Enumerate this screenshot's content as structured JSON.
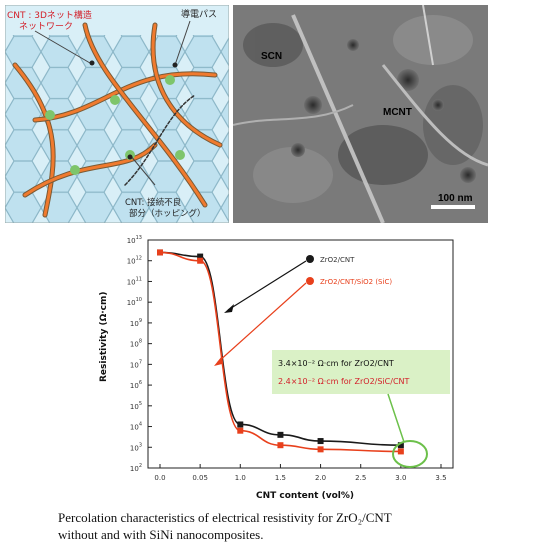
{
  "schematic": {
    "label_top_left": "CNT : 3Dネット構造",
    "label_top_left_2": "ネットワーク",
    "label_top_right": "導電パス",
    "label_bottom_1": "CNT: 接続不良",
    "label_bottom_2": "部分（ホッピング）"
  },
  "sem": {
    "label_1": "SCN",
    "label_2": "MCNT",
    "scale_bar": "100 nm"
  },
  "chart_data": {
    "type": "line",
    "xlabel": "CNT content (vol%)",
    "ylabel": "Resistivity (Ω·cm)",
    "x_tick_labels": [
      "0.0",
      "0.05",
      "1.0",
      "1.5",
      "2.0",
      "2.5",
      "3.0",
      "3.5"
    ],
    "y_tick_exponents": [
      2,
      3,
      4,
      5,
      6,
      7,
      8,
      9,
      10,
      11,
      12,
      13
    ],
    "y_tick_base": "10",
    "ylim_log10": [
      2,
      13
    ],
    "series": [
      {
        "name": "ZrO2/CNT",
        "color": "#1a1a1a",
        "x": [
          0.0,
          0.05,
          1.0,
          1.5,
          2.0,
          3.0
        ],
        "y_log10": [
          12.4,
          12.2,
          4.1,
          3.6,
          3.3,
          3.1
        ]
      },
      {
        "name": "ZrO2/CNT/SiO2 (SiC)",
        "color": "#e8401c",
        "x": [
          0.0,
          0.05,
          1.0,
          1.5,
          2.0,
          3.0
        ],
        "y_log10": [
          12.4,
          12.0,
          3.8,
          3.1,
          2.9,
          2.8
        ]
      }
    ],
    "legend_labels": [
      "ZrO2/CNT",
      "ZrO2/CNT/SiO2 (SiC)"
    ],
    "annotation_line_1": "3.4×10⁻² Ω·cm for ZrO2/CNT",
    "annotation_line_2": "2.4×10⁻² Ω·cm for ZrO2/SiC/CNT"
  },
  "caption": {
    "line1": "Percolation characteristics of electrical resistivity for ZrO₂/CNT",
    "line2": "without and with SiNi nanocomposites."
  }
}
